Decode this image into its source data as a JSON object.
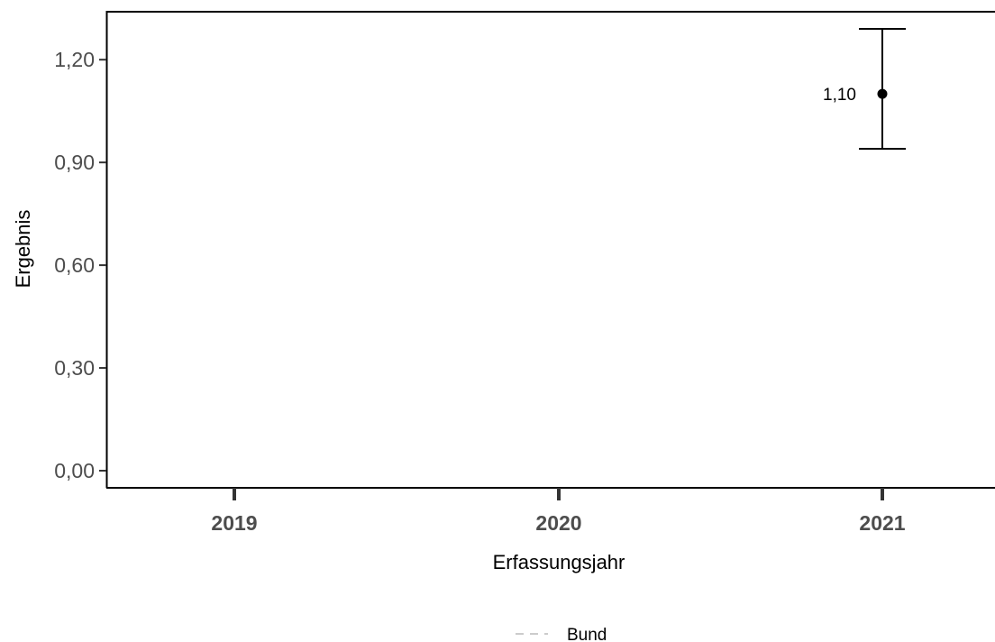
{
  "chart_data": {
    "type": "scatter",
    "title": "",
    "xlabel": "Erfassungsjahr",
    "ylabel": "Ergebnis",
    "categories": [
      "2019",
      "2020",
      "2021"
    ],
    "ylim": [
      -0.05,
      1.34
    ],
    "yticks": [
      0.0,
      0.3,
      0.6,
      0.9,
      1.2
    ],
    "ytick_labels": [
      "0,00",
      "0,30",
      "0,60",
      "0,90",
      "1,20"
    ],
    "grid": false,
    "points": [
      {
        "x": "2021",
        "y": 1.1,
        "lower": 0.94,
        "upper": 1.29,
        "label": "1,10"
      }
    ],
    "legend": {
      "placement": "bottom",
      "entries": [
        {
          "name": "Bund",
          "style": "dashed",
          "color": "#cccccc"
        }
      ]
    }
  }
}
